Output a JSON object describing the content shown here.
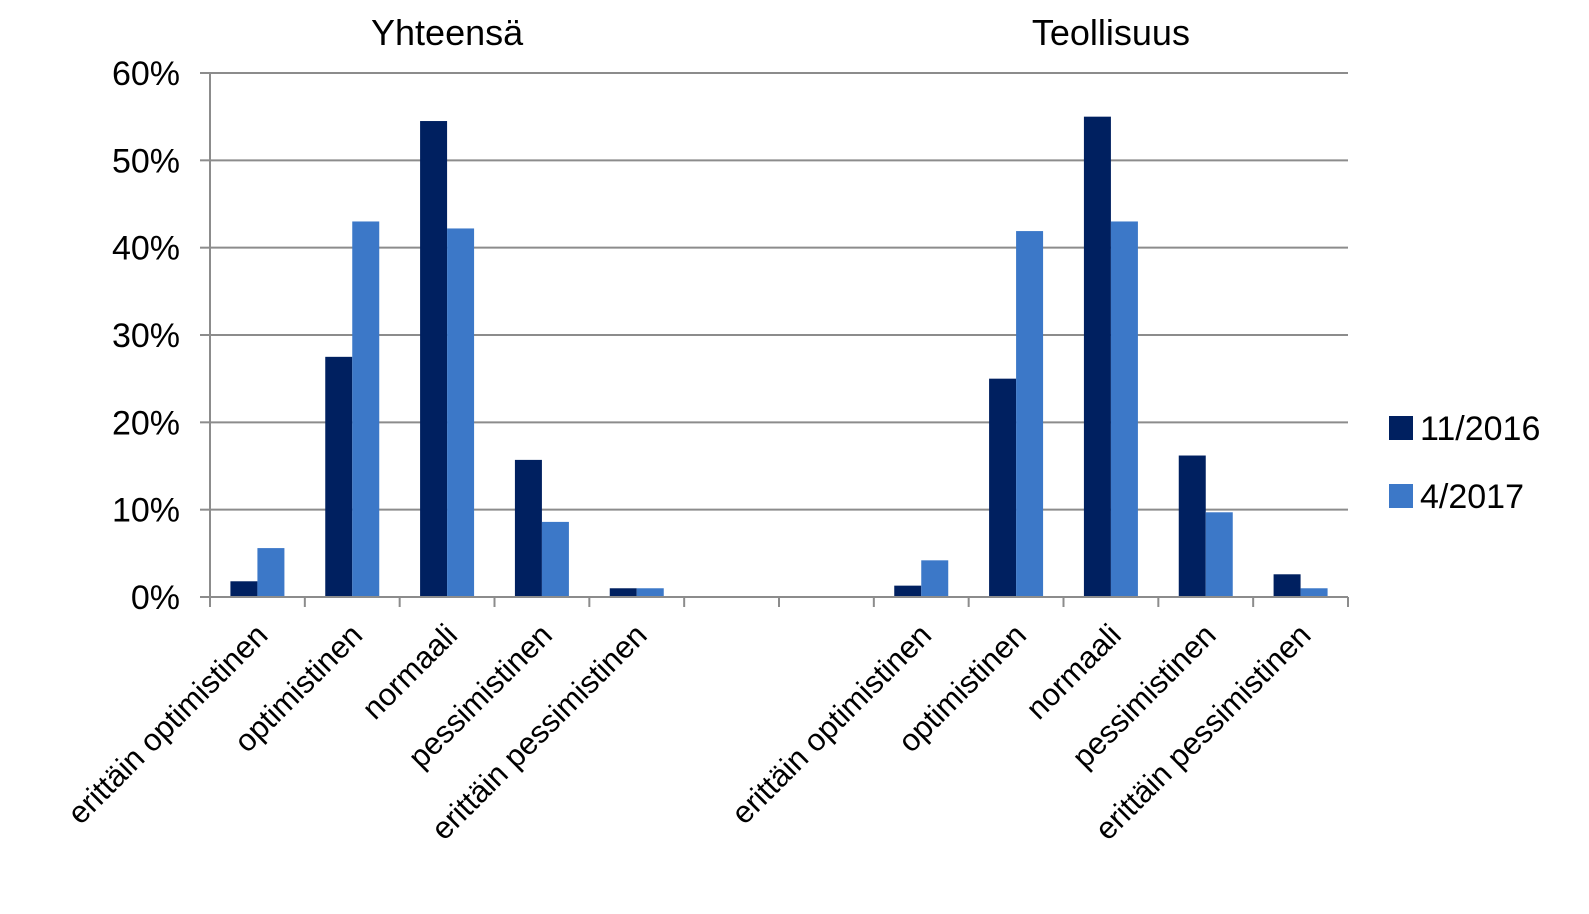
{
  "chart_data": {
    "type": "bar",
    "groups": [
      "Yhteensä",
      "Teollisuus"
    ],
    "categories": [
      "erittäin optimistinen",
      "optimistinen",
      "normaali",
      "pessimistinen",
      "erittäin pessimistinen"
    ],
    "series": [
      {
        "name": "11/2016",
        "color": "#002060",
        "values": [
          [
            1.8,
            27.5,
            54.5,
            15.7,
            1.0
          ],
          [
            1.3,
            25.0,
            55.0,
            16.2,
            2.6
          ]
        ]
      },
      {
        "name": "4/2017",
        "color": "#3C78C8",
        "values": [
          [
            5.6,
            43.0,
            42.2,
            8.6,
            1.0
          ],
          [
            4.2,
            41.9,
            43.0,
            9.7,
            1.0
          ]
        ]
      }
    ],
    "yticks": [
      "0%",
      "10%",
      "20%",
      "30%",
      "40%",
      "50%",
      "60%"
    ],
    "ylim": [
      0,
      60
    ],
    "grid": true,
    "legend": "right"
  }
}
